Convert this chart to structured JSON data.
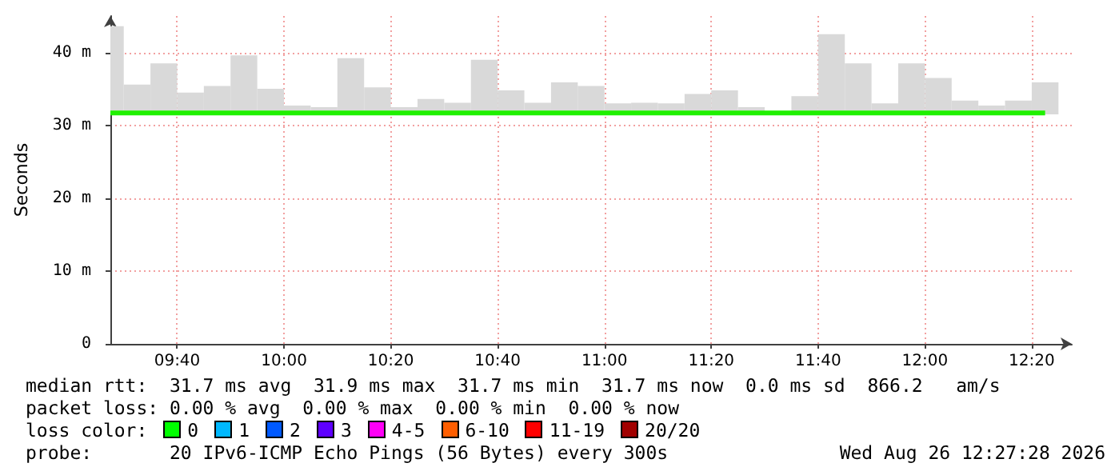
{
  "chart_data": {
    "type": "bar",
    "ylabel": "Seconds",
    "x": [
      9.4583,
      9.5417,
      9.625,
      9.7083,
      9.7917,
      9.875,
      9.9583,
      10.0417,
      10.125,
      10.2083,
      10.2917,
      10.375,
      10.4583,
      10.5417,
      10.625,
      10.7083,
      10.7917,
      10.875,
      10.9583,
      11.0417,
      11.125,
      11.2083,
      11.2917,
      11.375,
      11.4583,
      11.5417,
      11.625,
      11.7083,
      11.7917,
      11.875,
      11.9583,
      12.0417,
      12.125,
      12.2083,
      12.2917,
      12.375
    ],
    "series": [
      {
        "color": "#d9d9d9",
        "base": [
          31.5,
          31.5,
          31.5,
          31.5,
          31.5,
          31.5,
          31.5,
          31.5,
          31.5,
          31.5,
          31.5,
          31.5,
          31.5,
          31.5,
          31.5,
          31.5,
          31.5,
          31.5,
          31.5,
          31.5,
          31.5,
          31.5,
          31.5,
          31.5,
          31.5,
          31.5,
          31.5,
          31.5,
          31.5,
          31.5,
          31.5,
          31.5,
          31.5,
          31.5,
          31.5,
          31.5
        ],
        "values": [
          12.1,
          4.1,
          7.0,
          3.0,
          3.9,
          8.1,
          3.5,
          1.2,
          1.0,
          7.7,
          3.7,
          1.0,
          2.1,
          1.6,
          7.5,
          3.3,
          1.6,
          4.4,
          3.9,
          1.5,
          1.6,
          1.5,
          2.8,
          3.3,
          1.0,
          0.2,
          2.5,
          11.0,
          7.0,
          1.5,
          7.0,
          5.0,
          1.9,
          1.2,
          1.9,
          4.4
        ]
      },
      {
        "type": "step",
        "color": "#20f000",
        "values": [
          31.7,
          31.7,
          31.7,
          31.7,
          31.7,
          31.7,
          31.7,
          31.7,
          31.7,
          31.7,
          31.7,
          31.7,
          31.7,
          31.7,
          31.7,
          31.7,
          31.7,
          31.7,
          31.7,
          31.7,
          31.7,
          31.7,
          31.7,
          31.7,
          31.7,
          31.7,
          31.7,
          31.7,
          31.7,
          31.7,
          31.7,
          31.7,
          31.7,
          31.7,
          31.7,
          31.7
        ]
      }
    ],
    "xlim": [
      9.4583,
      12.4583
    ],
    "xticks": [
      {
        "value": 9.6667,
        "label": "09:40"
      },
      {
        "value": 10,
        "label": "10:00"
      },
      {
        "value": 10.3333,
        "label": "10:20"
      },
      {
        "value": 10.6667,
        "label": "10:40"
      },
      {
        "value": 11,
        "label": "11:00"
      },
      {
        "value": 11.3333,
        "label": "11:20"
      },
      {
        "value": 11.6667,
        "label": "11:40"
      },
      {
        "value": 12,
        "label": "12:00"
      },
      {
        "value": 12.3333,
        "label": "12:20"
      }
    ],
    "ylim": [
      0,
      45
    ],
    "yticks": [
      {
        "value": 0,
        "label": "0"
      },
      {
        "value": 10,
        "label": "10 m"
      },
      {
        "value": 20,
        "label": "20 m"
      },
      {
        "value": 30,
        "label": "30 m"
      },
      {
        "value": 40,
        "label": "40 m"
      }
    ],
    "grid": true,
    "annotations": [
      "median rtt:  31.7 ms avg  31.9 ms max  31.7 ms min  31.7 ms now  0.0 ms sd  866.2   am/s",
      "packet loss: 0.00 % avg  0.00 % max  0.00 % min  0.00 % now",
      "loss color:",
      "0",
      "1",
      "2",
      "3",
      "4-5",
      "6-10",
      "11-19",
      "20/20",
      "probe:       20 IPv6-ICMP Echo Pings (56 Bytes) every 300s",
      "Wed Aug 26 12:27:28 2026"
    ]
  }
}
